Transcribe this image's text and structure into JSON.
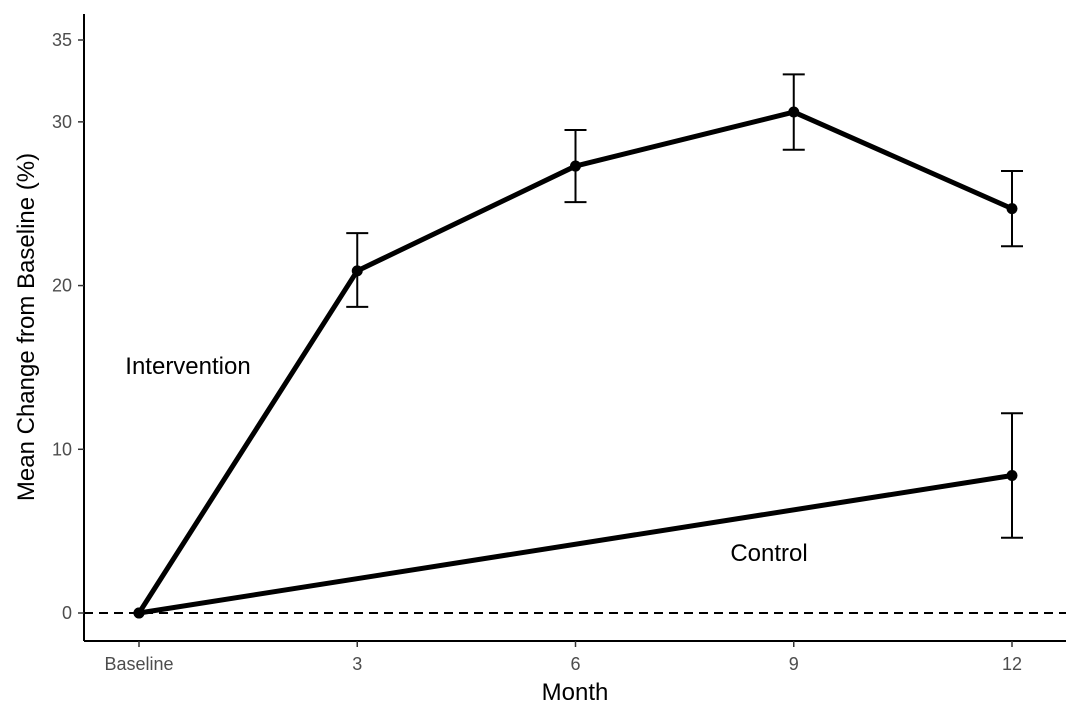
{
  "chart_data": {
    "type": "line",
    "title": "",
    "xlabel": "Month",
    "ylabel": "Mean Change from Baseline (%)",
    "x_categories": [
      "Baseline",
      "3",
      "6",
      "9",
      "12"
    ],
    "x_values": [
      0,
      3,
      6,
      9,
      12
    ],
    "xlim": [
      0,
      12
    ],
    "ylim": [
      0,
      35
    ],
    "yticks": [
      0,
      10,
      20,
      30,
      35
    ],
    "grid": false,
    "reference_line": {
      "y": 0,
      "style": "dashed"
    },
    "series": [
      {
        "name": "Intervention",
        "x": [
          0,
          3,
          6,
          9,
          12
        ],
        "y": [
          0,
          20.9,
          27.3,
          30.6,
          24.7
        ],
        "error_lower": [
          null,
          18.7,
          25.1,
          28.3,
          22.4
        ],
        "error_upper": [
          null,
          23.2,
          29.5,
          32.9,
          27.0
        ]
      },
      {
        "name": "Control",
        "x": [
          0,
          12
        ],
        "y": [
          0,
          8.4
        ],
        "error_lower": [
          null,
          4.6
        ],
        "error_upper": [
          null,
          12.2
        ]
      }
    ],
    "line_color": "#000000"
  }
}
